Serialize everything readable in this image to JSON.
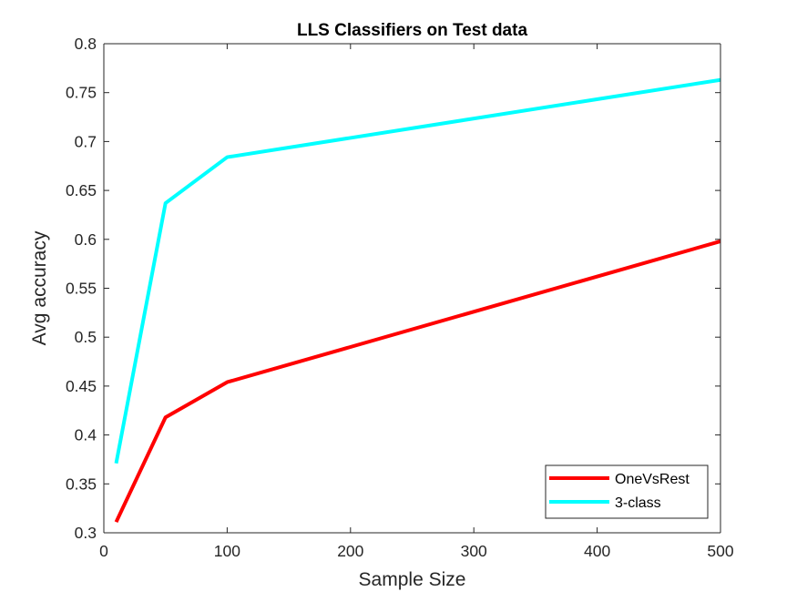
{
  "chart_data": {
    "type": "line",
    "title": "LLS Classifiers on Test data",
    "xlabel": "Sample Size",
    "ylabel": "Avg accuracy",
    "xlim": [
      0,
      500
    ],
    "ylim": [
      0.3,
      0.8
    ],
    "xticks": [
      0,
      100,
      200,
      300,
      400,
      500
    ],
    "xtick_labels": [
      "0",
      "100",
      "200",
      "300",
      "400",
      "500"
    ],
    "yticks": [
      0.3,
      0.35,
      0.4,
      0.45,
      0.5,
      0.55,
      0.6,
      0.65,
      0.7,
      0.75,
      0.8
    ],
    "ytick_labels": [
      "0.3",
      "0.35",
      "0.4",
      "0.45",
      "0.5",
      "0.55",
      "0.6",
      "0.65",
      "0.7",
      "0.75",
      "0.8"
    ],
    "grid": false,
    "legend_position": "bottom-right",
    "x": [
      10,
      50,
      100,
      500
    ],
    "series": [
      {
        "name": "OneVsRest",
        "color": "#ff0000",
        "values": [
          0.311,
          0.418,
          0.454,
          0.598
        ]
      },
      {
        "name": "3-class",
        "color": "#00ffff",
        "values": [
          0.371,
          0.637,
          0.684,
          0.763
        ]
      }
    ]
  }
}
